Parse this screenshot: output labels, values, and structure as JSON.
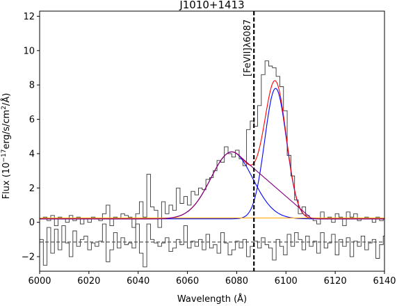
{
  "chart_data": {
    "type": "line",
    "title": "J1010+1413",
    "xlabel": "Wavelength (Å)",
    "ylabel_main": "Flux (10",
    "ylabel_exp": "−17",
    "ylabel_mid": "erg/s/cm",
    "ylabel_exp2": "2",
    "ylabel_end": "/Å)",
    "xlim": [
      6000,
      6140
    ],
    "ylim": [
      -2.85,
      12.3
    ],
    "xticks": [
      6000,
      6020,
      6040,
      6060,
      6080,
      6100,
      6120,
      6140
    ],
    "yticks": [
      -2,
      0,
      2,
      4,
      6,
      8,
      10,
      12
    ],
    "grid": false,
    "annotation": {
      "text": "[FeVII]λ6087",
      "x": 6087
    },
    "residual_level": -1.15,
    "series": [
      {
        "kind": "step",
        "color": "#333333",
        "x": [
          6000,
          6001.5,
          6003,
          6004.5,
          6006,
          6007.5,
          6009,
          6010.5,
          6012,
          6013.5,
          6015,
          6016.5,
          6018,
          6019.5,
          6021,
          6022.5,
          6024,
          6025.5,
          6027,
          6028.5,
          6030,
          6031.5,
          6033,
          6034.5,
          6036,
          6037.5,
          6039,
          6040.5,
          6042,
          6043.5,
          6045,
          6046.5,
          6048,
          6049.5,
          6051,
          6052.5,
          6054,
          6055.5,
          6057,
          6058.5,
          6060,
          6061.5,
          6063,
          6064.5,
          6066,
          6067.5,
          6069,
          6070.5,
          6072,
          6073.5,
          6075,
          6076.5,
          6078,
          6079.5,
          6081,
          6082.5,
          6084,
          6085.5,
          6087,
          6088.5,
          6090,
          6091.5,
          6093,
          6094.5,
          6096,
          6097.5,
          6099,
          6100.5,
          6102,
          6103.5,
          6105,
          6106.5,
          6108,
          6109.5,
          6111,
          6112.5,
          6114,
          6115.5,
          6117,
          6118.5,
          6120,
          6121.5,
          6123,
          6124.5,
          6126,
          6127.5,
          6129,
          6130.5,
          6132,
          6133.5,
          6135,
          6136.5,
          6138,
          6139.5
        ],
        "y": [
          0.2,
          0.3,
          0.1,
          0.4,
          -0.2,
          0.3,
          0.2,
          0.0,
          0.4,
          0.1,
          0.3,
          -0.1,
          0.2,
          0.0,
          0.3,
          0.2,
          0.1,
          0.5,
          1.0,
          -0.2,
          0.3,
          0.2,
          0.5,
          0.4,
          0.3,
          -0.3,
          0.5,
          1.2,
          0.3,
          2.8,
          0.9,
          0.7,
          -0.3,
          1.2,
          0.5,
          1.0,
          0.7,
          2.0,
          1.1,
          1.5,
          1.0,
          1.8,
          1.6,
          2.0,
          1.9,
          2.5,
          2.6,
          3.0,
          3.6,
          3.5,
          4.4,
          4.0,
          3.8,
          4.2,
          3.7,
          3.3,
          5.4,
          5.9,
          5.6,
          6.8,
          8.6,
          9.4,
          9.1,
          9.0,
          8.5,
          7.9,
          6.5,
          3.9,
          2.7,
          1.3,
          0.5,
          0.9,
          0.4,
          0.2,
          0.1,
          -0.1,
          0.6,
          0.2,
          0.3,
          0.0,
          0.5,
          0.3,
          -0.2,
          0.6,
          0.3,
          0.5,
          0.1,
          0.2,
          0.3,
          0.2,
          0.0,
          0.3,
          0.1,
          0.2
        ]
      },
      {
        "kind": "step",
        "color": "#333333",
        "x": [
          6000,
          6001.5,
          6003,
          6004.5,
          6006,
          6007.5,
          6009,
          6010.5,
          6012,
          6013.5,
          6015,
          6016.5,
          6018,
          6019.5,
          6021,
          6022.5,
          6024,
          6025.5,
          6027,
          6028.5,
          6030,
          6031.5,
          6033,
          6034.5,
          6036,
          6037.5,
          6039,
          6040.5,
          6042,
          6043.5,
          6045,
          6046.5,
          6048,
          6049.5,
          6051,
          6052.5,
          6054,
          6055.5,
          6057,
          6058.5,
          6060,
          6061.5,
          6063,
          6064.5,
          6066,
          6067.5,
          6069,
          6070.5,
          6072,
          6073.5,
          6075,
          6076.5,
          6078,
          6079.5,
          6081,
          6082.5,
          6084,
          6085.5,
          6087,
          6088.5,
          6090,
          6091.5,
          6093,
          6094.5,
          6096,
          6097.5,
          6099,
          6100.5,
          6102,
          6103.5,
          6105,
          6106.5,
          6108,
          6109.5,
          6111,
          6112.5,
          6114,
          6115.5,
          6117,
          6118.5,
          6120,
          6121.5,
          6123,
          6124.5,
          6126,
          6127.5,
          6129,
          6130.5,
          6132,
          6133.5,
          6135,
          6136.5,
          6138,
          6139.5
        ],
        "y": [
          -1.0,
          -2.5,
          -0.3,
          -1.8,
          -0.4,
          -1.6,
          -0.2,
          -1.2,
          -2.0,
          -0.5,
          -1.4,
          -1.0,
          -0.8,
          -1.6,
          -1.2,
          -1.4,
          -1.1,
          -0.1,
          -2.3,
          -1.6,
          -0.6,
          -1.5,
          -0.9,
          -1.3,
          -1.2,
          -1.5,
          -0.1,
          -1.8,
          -2.6,
          -0.1,
          -1.0,
          -1.2,
          -1.4,
          -1.2,
          -0.9,
          -1.7,
          -1.5,
          -1.0,
          -1.3,
          -0.2,
          -1.5,
          -1.1,
          -1.4,
          -1.0,
          -1.6,
          -0.7,
          -1.5,
          -1.3,
          -1.8,
          -0.6,
          -1.2,
          -1.9,
          -1.6,
          -1.1,
          -1.5,
          -1.0,
          -2.0,
          -1.4,
          -1.1,
          -1.5,
          -0.9,
          -1.3,
          -1.5,
          -2.2,
          -1.0,
          -1.4,
          -1.9,
          -0.7,
          -1.4,
          -0.6,
          -1.0,
          -1.6,
          -0.8,
          -1.4,
          -1.1,
          -1.8,
          -0.6,
          -1.5,
          -1.2,
          -0.7,
          -1.9,
          -1.0,
          -1.4,
          -0.9,
          -2.0,
          -1.1,
          -1.4,
          -0.8,
          -1.6,
          -1.2,
          -1.0,
          -2.1,
          -1.3,
          -0.8
        ]
      },
      {
        "kind": "gauss",
        "color": "#0000ff",
        "amp": 3.9,
        "mu": 6078,
        "sigma": 8.5,
        "base": 0.2
      },
      {
        "kind": "gauss",
        "color": "#0000ff",
        "amp": 7.6,
        "mu": 6095.8,
        "sigma": 4.4,
        "base": 0.2
      },
      {
        "kind": "sum",
        "color": "#ff0000",
        "base": 0.2
      },
      {
        "kind": "const",
        "color": "#ffa500",
        "value": 0.25
      },
      {
        "kind": "sum_offset",
        "color": "#800080",
        "base": 0.2
      }
    ]
  }
}
